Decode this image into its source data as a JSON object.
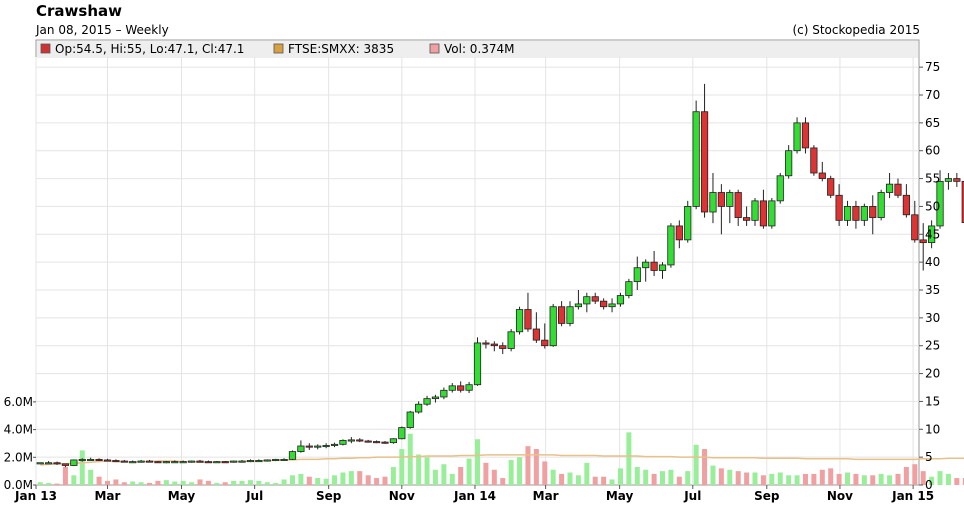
{
  "header": {
    "title": "Crawshaw",
    "subtitle": "Jan 08, 2015 – Weekly",
    "copyright": "(c) Stockopedia 2015"
  },
  "legend": [
    {
      "label": "Op:54.5, Hi:55, Lo:47.1, Cl:47.1",
      "color": "#cc3333"
    },
    {
      "label": "FTSE:SMXX: 3835",
      "color": "#d9a040"
    },
    {
      "label": "Vol: 0.374M",
      "color": "#f0a0a0"
    }
  ],
  "chart_data": {
    "type": "candlestick",
    "grid": true,
    "y_price": {
      "range": [
        0,
        77
      ],
      "ticks": [
        "0",
        "5",
        "10",
        "15",
        "20",
        "25",
        "30",
        "35",
        "40",
        "45",
        "50",
        "55",
        "60",
        "65",
        "70",
        "75"
      ]
    },
    "y_volume": {
      "range": [
        0,
        7
      ],
      "ticks": [
        "0.0M",
        "2.0M",
        "4.0M",
        "6.0M"
      ]
    },
    "x_ticks": [
      {
        "label": "Jan 13",
        "week": 0
      },
      {
        "label": "Mar",
        "week": 8.5
      },
      {
        "label": "May",
        "week": 17.3
      },
      {
        "label": "Jul",
        "week": 26
      },
      {
        "label": "Sep",
        "week": 34.8
      },
      {
        "label": "Nov",
        "week": 43.5
      },
      {
        "label": "Jan 14",
        "week": 52.2
      },
      {
        "label": "Mar",
        "week": 60.6
      },
      {
        "label": "May",
        "week": 69.4
      },
      {
        "label": "Jul",
        "week": 78.1
      },
      {
        "label": "Sep",
        "week": 86.9
      },
      {
        "label": "Nov",
        "week": 95.6
      },
      {
        "label": "Jan 15",
        "week": 104.3
      }
    ],
    "candles": [
      [
        4,
        4,
        3.8,
        4
      ],
      [
        4,
        4.3,
        3.8,
        4
      ],
      [
        4,
        4.2,
        3.6,
        3.8
      ],
      [
        3.8,
        3.8,
        3.2,
        3.5
      ],
      [
        3.5,
        4.6,
        3.4,
        4.5
      ],
      [
        4.4,
        4.8,
        4.2,
        4.6
      ],
      [
        4.6,
        4.9,
        4.4,
        4.6
      ],
      [
        4.6,
        4.8,
        4.3,
        4.5
      ],
      [
        4.5,
        4.7,
        4.3,
        4.4
      ],
      [
        4.4,
        4.6,
        4.2,
        4.3
      ],
      [
        4.3,
        4.5,
        4.1,
        4.2
      ],
      [
        4.2,
        4.4,
        4.0,
        4.2
      ],
      [
        4.2,
        4.5,
        4.0,
        4.3
      ],
      [
        4.3,
        4.5,
        4.1,
        4.2
      ],
      [
        4.2,
        4.3,
        4.0,
        4.1
      ],
      [
        4.1,
        4.3,
        3.9,
        4.2
      ],
      [
        4.2,
        4.4,
        4.0,
        4.2
      ],
      [
        4.2,
        4.4,
        4.0,
        4.2
      ],
      [
        4.2,
        4.4,
        4.0,
        4.3
      ],
      [
        4.3,
        4.5,
        4.1,
        4.2
      ],
      [
        4.2,
        4.4,
        4.0,
        4.1
      ],
      [
        4.1,
        4.3,
        4.0,
        4.2
      ],
      [
        4.2,
        4.3,
        4.0,
        4.1
      ],
      [
        4.1,
        4.4,
        4.0,
        4.3
      ],
      [
        4.3,
        4.5,
        4.1,
        4.3
      ],
      [
        4.3,
        4.6,
        4.1,
        4.4
      ],
      [
        4.4,
        4.6,
        4.2,
        4.4
      ],
      [
        4.4,
        4.6,
        4.2,
        4.5
      ],
      [
        4.5,
        4.7,
        4.3,
        4.6
      ],
      [
        4.6,
        4.8,
        4.4,
        4.6
      ],
      [
        4.6,
        6.2,
        4.5,
        6.0
      ],
      [
        6.0,
        8.0,
        5.8,
        7.0
      ],
      [
        7.0,
        7.5,
        6.3,
        6.8
      ],
      [
        6.8,
        7.3,
        6.4,
        7.0
      ],
      [
        7.0,
        7.5,
        6.6,
        7.1
      ],
      [
        7.1,
        7.6,
        6.8,
        7.3
      ],
      [
        7.3,
        8.2,
        7.1,
        8.0
      ],
      [
        8.0,
        8.6,
        7.5,
        8.1
      ],
      [
        8.1,
        8.4,
        7.7,
        7.9
      ],
      [
        7.9,
        8.1,
        7.6,
        7.8
      ],
      [
        7.8,
        8.0,
        7.5,
        7.7
      ],
      [
        7.7,
        7.9,
        7.4,
        7.6
      ],
      [
        7.6,
        8.4,
        7.4,
        8.3
      ],
      [
        8.3,
        10.5,
        8.2,
        10.3
      ],
      [
        10.3,
        13.3,
        10.1,
        13.1
      ],
      [
        13.1,
        15.0,
        12.8,
        14.5
      ],
      [
        14.5,
        16.0,
        14.2,
        15.5
      ],
      [
        15.5,
        16.2,
        14.8,
        15.8
      ],
      [
        15.8,
        17.5,
        15.4,
        17.0
      ],
      [
        17.0,
        18.3,
        16.6,
        17.8
      ],
      [
        17.8,
        18.6,
        16.6,
        17.0
      ],
      [
        17.0,
        18.5,
        16.5,
        18.0
      ],
      [
        18.0,
        26.5,
        17.8,
        25.5
      ],
      [
        25.5,
        26.0,
        24.5,
        25.3
      ],
      [
        25.3,
        25.8,
        24.0,
        25.0
      ],
      [
        25.0,
        25.6,
        23.5,
        24.5
      ],
      [
        24.5,
        28.0,
        24.0,
        27.5
      ],
      [
        27.5,
        32.0,
        27.0,
        31.5
      ],
      [
        31.5,
        34.5,
        27.5,
        28.0
      ],
      [
        28.0,
        31.0,
        25.5,
        26.0
      ],
      [
        26.0,
        29.0,
        24.5,
        25.0
      ],
      [
        25.0,
        32.5,
        24.8,
        32.0
      ],
      [
        32.0,
        33.0,
        28.5,
        29.0
      ],
      [
        29.0,
        33.0,
        28.5,
        32.0
      ],
      [
        32.0,
        35.0,
        31.5,
        32.5
      ],
      [
        32.5,
        34.5,
        31.0,
        33.8
      ],
      [
        33.8,
        34.5,
        32.5,
        33.0
      ],
      [
        33.0,
        33.5,
        31.5,
        32.0
      ],
      [
        32.0,
        33.5,
        31.0,
        32.5
      ],
      [
        32.5,
        34.5,
        32.0,
        34.0
      ],
      [
        34.0,
        37.0,
        33.5,
        36.5
      ],
      [
        36.5,
        41.0,
        35.0,
        39.0
      ],
      [
        39.0,
        40.5,
        36.5,
        40.0
      ],
      [
        40.0,
        42.0,
        37.5,
        38.5
      ],
      [
        38.5,
        40.0,
        37.0,
        39.5
      ],
      [
        39.5,
        47.0,
        39.0,
        46.5
      ],
      [
        46.5,
        47.5,
        42.5,
        44.0
      ],
      [
        44.0,
        51.0,
        43.5,
        50.0
      ],
      [
        50.0,
        69.0,
        49.5,
        67.0
      ],
      [
        67.0,
        72.0,
        48.0,
        49.0
      ],
      [
        49.0,
        56.0,
        47.0,
        52.5
      ],
      [
        52.5,
        54.0,
        45.0,
        50.0
      ],
      [
        50.0,
        53.0,
        47.0,
        52.5
      ],
      [
        52.5,
        53.0,
        46.5,
        48.0
      ],
      [
        48.0,
        50.0,
        46.5,
        47.5
      ],
      [
        47.5,
        51.5,
        46.5,
        51.0
      ],
      [
        51.0,
        53.0,
        46.0,
        46.5
      ],
      [
        46.5,
        51.5,
        46.0,
        51.0
      ],
      [
        51.0,
        56.0,
        50.5,
        55.5
      ],
      [
        55.5,
        61.0,
        55.0,
        60.0
      ],
      [
        60.0,
        66.0,
        59.5,
        65.0
      ],
      [
        65.0,
        66.0,
        59.5,
        60.5
      ],
      [
        60.5,
        61.0,
        55.5,
        56.0
      ],
      [
        56.0,
        58.0,
        54.5,
        55.0
      ],
      [
        55.0,
        55.5,
        51.5,
        52.0
      ],
      [
        52.0,
        54.0,
        46.5,
        47.5
      ],
      [
        47.5,
        51.0,
        46.5,
        50.0
      ],
      [
        50.0,
        51.0,
        46.0,
        47.5
      ],
      [
        47.5,
        50.5,
        46.5,
        50.0
      ],
      [
        50.0,
        52.0,
        45.0,
        48.0
      ],
      [
        48.0,
        53.0,
        47.5,
        52.5
      ],
      [
        52.5,
        56.0,
        51.5,
        54.0
      ],
      [
        54.0,
        55.0,
        51.5,
        52.0
      ],
      [
        52.0,
        54.0,
        48.0,
        48.5
      ],
      [
        48.5,
        51.0,
        43.5,
        44.0
      ],
      [
        44.0,
        47.0,
        38.5,
        43.5
      ],
      [
        43.5,
        47.5,
        42.5,
        46.5
      ],
      [
        46.5,
        56.5,
        46.0,
        54.5
      ],
      [
        54.5,
        56.0,
        53.0,
        55.0
      ],
      [
        55.0,
        56.0,
        53.5,
        54.5
      ],
      [
        54.5,
        55.0,
        47.1,
        47.1
      ]
    ],
    "volume": [
      0.2,
      0.15,
      0.1,
      1.3,
      0.7,
      2.5,
      1.1,
      0.6,
      0.3,
      0.4,
      0.2,
      0.25,
      0.2,
      0.15,
      0.3,
      0.35,
      0.25,
      0.3,
      0.2,
      0.4,
      0.3,
      0.15,
      0.2,
      0.3,
      0.3,
      0.35,
      0.3,
      0.2,
      0.15,
      0.4,
      0.7,
      0.8,
      0.6,
      0.5,
      0.45,
      0.7,
      0.9,
      1.0,
      1.0,
      0.7,
      0.5,
      0.6,
      1.3,
      2.6,
      3.7,
      2.2,
      2.0,
      1.1,
      1.5,
      0.8,
      1.3,
      1.9,
      3.3,
      1.6,
      1.1,
      0.5,
      1.8,
      2.0,
      2.8,
      2.6,
      1.7,
      1.1,
      0.8,
      0.9,
      0.7,
      1.6,
      0.6,
      0.6,
      0.4,
      1.2,
      3.8,
      1.3,
      1.1,
      0.8,
      1.0,
      1.1,
      0.6,
      1.0,
      2.9,
      2.6,
      1.4,
      1.2,
      1.1,
      1.0,
      0.9,
      0.9,
      0.7,
      0.8,
      0.9,
      0.7,
      0.7,
      0.8,
      0.8,
      1.1,
      1.2,
      0.8,
      0.9,
      0.8,
      0.7,
      0.7,
      0.8,
      0.7,
      0.8,
      1.3,
      1.5,
      1.0,
      0.6,
      1.0,
      0.8,
      0.5,
      0.5,
      0.37
    ],
    "ftse_index_scaled": [
      3.6,
      3.7,
      3.8,
      3.8,
      3.9,
      4.0,
      4.1,
      4.2,
      4.3,
      4.2,
      4.2,
      4.1,
      4.2,
      4.2,
      4.3,
      4.3,
      4.3,
      4.2,
      4.2,
      4.1,
      4.1,
      4.1,
      4.2,
      4.2,
      4.2,
      4.3,
      4.3,
      4.4,
      4.4,
      4.5,
      4.5,
      4.6,
      4.6,
      4.6,
      4.7,
      4.7,
      4.8,
      4.8,
      4.9,
      4.9,
      5.0,
      5.0,
      5.0,
      5.0,
      5.1,
      5.1,
      5.2,
      5.2,
      5.2,
      5.2,
      5.3,
      5.3,
      5.3,
      5.4,
      5.4,
      5.4,
      5.4,
      5.4,
      5.4,
      5.4,
      5.4,
      5.4,
      5.3,
      5.3,
      5.3,
      5.3,
      5.3,
      5.2,
      5.2,
      5.2,
      5.2,
      5.2,
      5.1,
      5.1,
      5.1,
      5.1,
      5.0,
      5.0,
      5.0,
      5.0,
      4.9,
      4.9,
      4.9,
      4.9,
      4.9,
      4.9,
      4.8,
      4.8,
      4.8,
      4.8,
      4.8,
      4.7,
      4.7,
      4.7,
      4.7,
      4.7,
      4.7,
      4.6,
      4.6,
      4.6,
      4.6,
      4.6,
      4.6,
      4.6,
      4.6,
      4.7,
      4.7,
      4.7,
      4.8,
      4.8,
      4.8,
      4.8
    ]
  }
}
